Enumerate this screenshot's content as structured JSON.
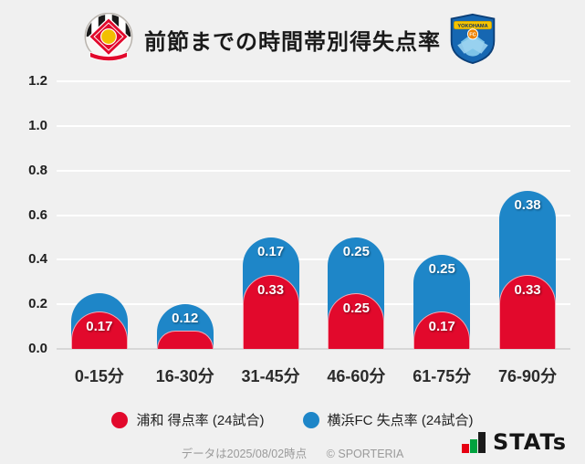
{
  "header": {
    "title": "前節までの時間帯別得失点率",
    "left_logo": "urawa-reds-crest",
    "right_logo": "yokohama-fc-crest",
    "right_logo_text": "YOKOHAMA",
    "right_logo_badge": "FC"
  },
  "chart_data": {
    "type": "bar",
    "stacked": true,
    "title": "前節までの時間帯別得失点率",
    "categories": [
      "0-15分",
      "16-30分",
      "31-45分",
      "46-60分",
      "61-75分",
      "76-90分"
    ],
    "series": [
      {
        "name": "浦和 得点率 (24試合)",
        "color": "#e2092c",
        "values": [
          0.17,
          0.08,
          0.33,
          0.25,
          0.17,
          0.33
        ],
        "labels": [
          "0.17",
          "",
          "0.33",
          "0.25",
          "0.17",
          "0.33"
        ]
      },
      {
        "name": "横浜FC 失点率 (24試合)",
        "color": "#1e86c8",
        "values": [
          0.08,
          0.12,
          0.17,
          0.25,
          0.25,
          0.38
        ],
        "labels": [
          "",
          "0.12",
          "0.17",
          "0.25",
          "0.25",
          "0.38"
        ]
      }
    ],
    "y_ticks": [
      "0.0",
      "0.2",
      "0.4",
      "0.6",
      "0.8",
      "1.0",
      "1.2"
    ],
    "ylim": [
      0,
      1.2
    ],
    "grid": true,
    "legend_position": "bottom"
  },
  "legend": {
    "items": [
      {
        "label": "浦和 得点率 (24試合)",
        "color": "#e2092c"
      },
      {
        "label": "横浜FC 失点率 (24試合)",
        "color": "#1e86c8"
      }
    ]
  },
  "footer": {
    "note": "データは2025/08/02時点",
    "copyright": "© SPORTERIA",
    "brand": "STATs",
    "brand_icon": "bar-chart-icon"
  }
}
